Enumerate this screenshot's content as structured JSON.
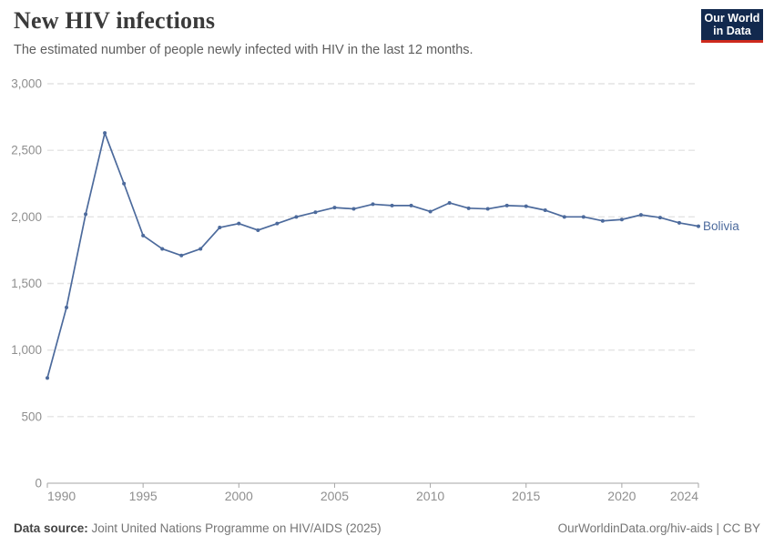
{
  "header": {
    "title": "New HIV infections",
    "subtitle": "The estimated number of people newly infected with HIV in the last 12 months."
  },
  "logo": {
    "line1": "Our World",
    "line2": "in Data",
    "bg_color": "#12294E",
    "accent_color": "#CE2A1D"
  },
  "chart_data": {
    "type": "line",
    "title": "New HIV infections",
    "subtitle": "The estimated number of people newly infected with HIV in the last 12 months.",
    "xlabel": "",
    "ylabel": "",
    "xlim": [
      1990,
      2024
    ],
    "ylim": [
      0,
      3000
    ],
    "grid": "horizontal-dashed",
    "legend_position": "line-end-label",
    "x": [
      1990,
      1991,
      1992,
      1993,
      1994,
      1995,
      1996,
      1997,
      1998,
      1999,
      2000,
      2001,
      2002,
      2003,
      2004,
      2005,
      2006,
      2007,
      2008,
      2009,
      2010,
      2011,
      2012,
      2013,
      2014,
      2015,
      2016,
      2017,
      2018,
      2019,
      2020,
      2021,
      2022,
      2023,
      2024
    ],
    "series": [
      {
        "name": "Bolivia",
        "color": "#4C6A9C",
        "values": [
          790,
          1320,
          2020,
          2630,
          2250,
          1860,
          1760,
          1710,
          1760,
          1920,
          1950,
          1900,
          1950,
          2000,
          2035,
          2070,
          2060,
          2095,
          2085,
          2085,
          2040,
          2105,
          2065,
          2060,
          2085,
          2080,
          2050,
          2000,
          2000,
          1970,
          1980,
          2015,
          1995,
          1955,
          1930
        ]
      }
    ],
    "yticks": [
      {
        "value": 0,
        "label": "0"
      },
      {
        "value": 500,
        "label": "500"
      },
      {
        "value": 1000,
        "label": "1,000"
      },
      {
        "value": 1500,
        "label": "1,500"
      },
      {
        "value": 2000,
        "label": "2,000"
      },
      {
        "value": 2500,
        "label": "2,500"
      },
      {
        "value": 3000,
        "label": "3,000"
      }
    ],
    "xticks": [
      {
        "value": 1990,
        "label": "1990"
      },
      {
        "value": 1995,
        "label": "1995"
      },
      {
        "value": 2000,
        "label": "2000"
      },
      {
        "value": 2005,
        "label": "2005"
      },
      {
        "value": 2010,
        "label": "2010"
      },
      {
        "value": 2015,
        "label": "2015"
      },
      {
        "value": 2020,
        "label": "2020"
      },
      {
        "value": 2024,
        "label": "2024"
      }
    ]
  },
  "footer": {
    "source_label": "Data source:",
    "source_text": " Joint United Nations Programme on HIV/AIDS (2025)",
    "right_text": "OurWorldinData.org/hiv-aids | CC BY"
  },
  "colors": {
    "line": "#4C6A9C",
    "axis_text": "#8F8F8F",
    "gridline": "#E4E4E4",
    "axis_line": "#A6A6A6",
    "title": "#3A3A3A",
    "subtitle": "#5E5E5E",
    "footer_text": "#757575"
  }
}
